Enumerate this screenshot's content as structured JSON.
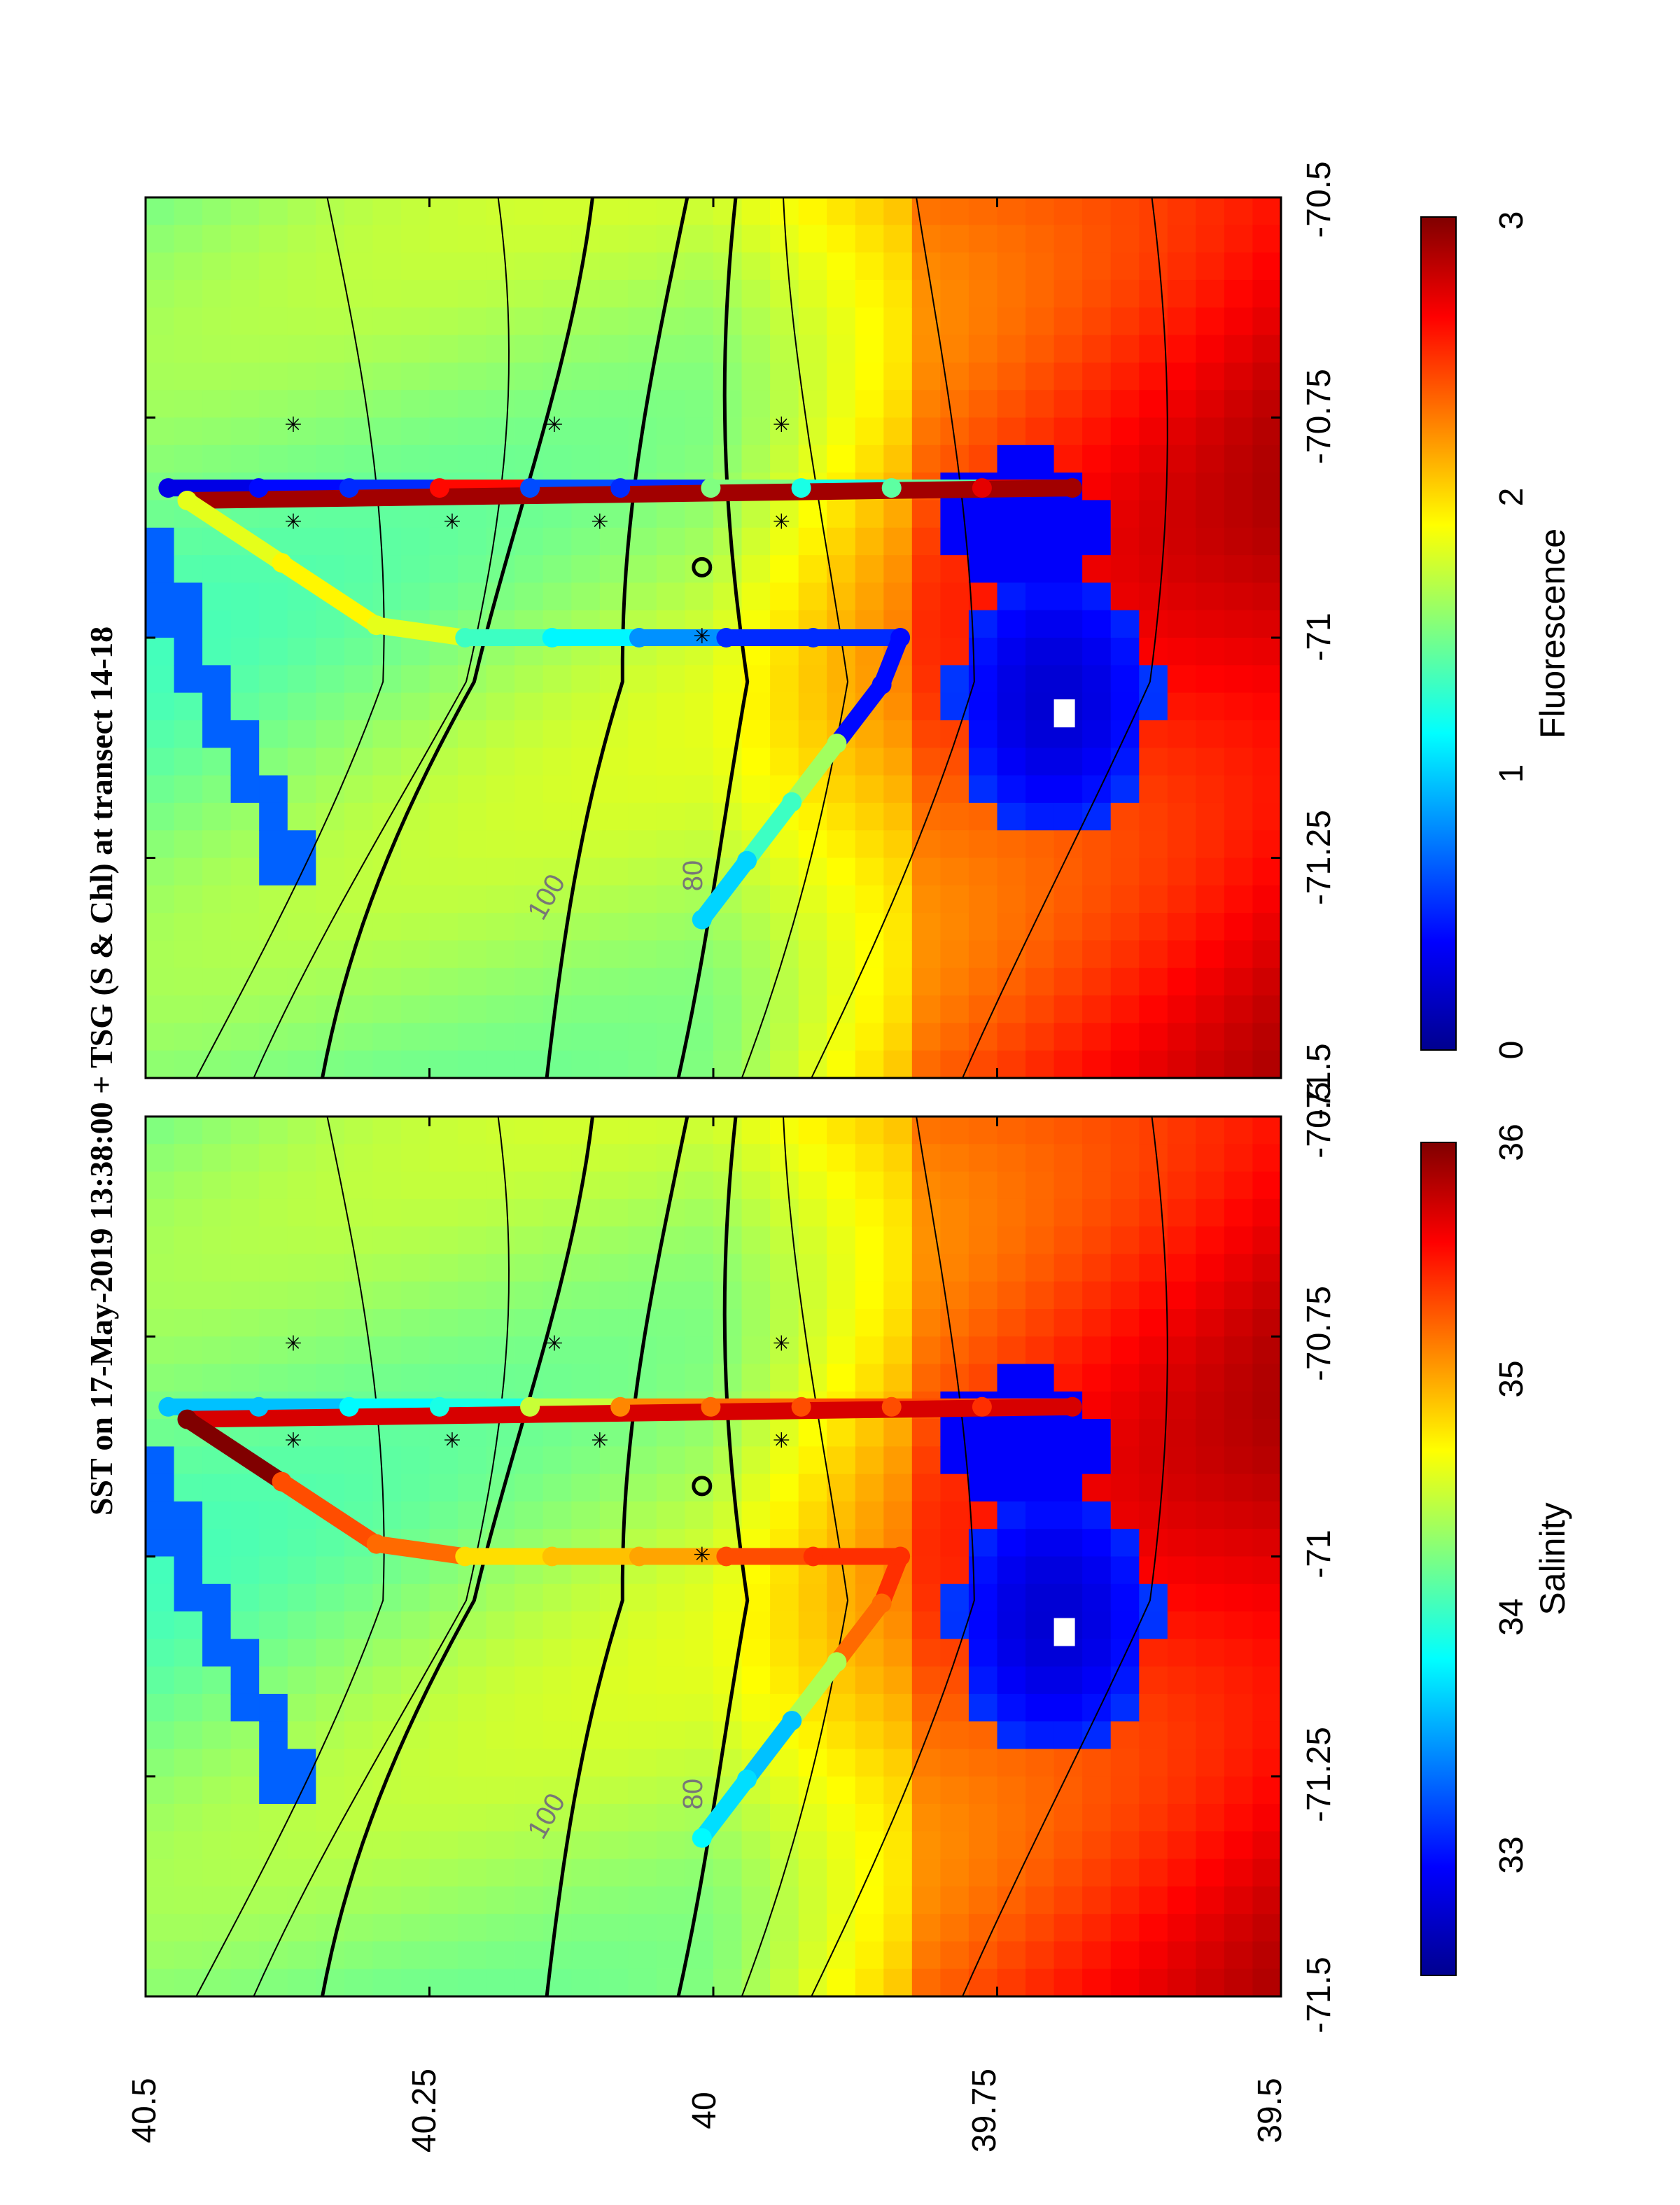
{
  "chart_data": {
    "type": "heatmap",
    "title": "SST on 17-May-2019 13:38:00 + TSG (S & Chl) at transect 14-18",
    "lon_ticks": [
      "-71.5",
      "-71.25",
      "-71",
      "-70.75",
      "-70.5"
    ],
    "lat_ticks": [
      "39.5",
      "39.75",
      "40",
      "40.25",
      "40.5"
    ],
    "xlim": [
      -71.5,
      -70.5
    ],
    "ylim": [
      39.5,
      40.5
    ],
    "panels": [
      {
        "name": "salinity",
        "colorbar_label": "Salinity",
        "colorbar_ticks": [
          "33",
          "34",
          "35",
          "36"
        ],
        "clim": [
          32.5,
          36
        ],
        "colormap": "jet",
        "track_values": [
          33.6,
          33.6,
          33.8,
          33.9,
          34.5,
          35.1,
          35.2,
          35.3,
          35.3,
          35.4,
          35.7,
          36.0,
          35.3,
          35.2,
          34.8,
          34.9,
          35.0,
          35.3,
          35.4,
          35.4,
          35.2,
          34.4,
          33.6,
          33.7,
          33.8
        ]
      },
      {
        "name": "fluorescence",
        "colorbar_label": "Fluorescence",
        "colorbar_ticks": [
          "0",
          "1",
          "2",
          "3"
        ],
        "clim": [
          0,
          3
        ],
        "colormap": "jet",
        "track_values": [
          0.3,
          0.4,
          0.5,
          2.6,
          0.6,
          0.5,
          1.5,
          1.2,
          1.4,
          2.7,
          2.9,
          1.8,
          1.9,
          1.8,
          1.3,
          1.1,
          0.8,
          0.5,
          0.5,
          0.4,
          0.4,
          1.6,
          1.3,
          1.0,
          1.0
        ]
      }
    ],
    "depth_contour_labels": [
      "100",
      "80"
    ],
    "stations": {
      "star_count": 8,
      "circle_count": 1
    },
    "sst_field_notes": "cool shelf water (blue) north, warm slope water (red) south, frontal band near 39.8-40"
  },
  "colors": {
    "contour": "#000000",
    "label_gray": "#777777"
  }
}
